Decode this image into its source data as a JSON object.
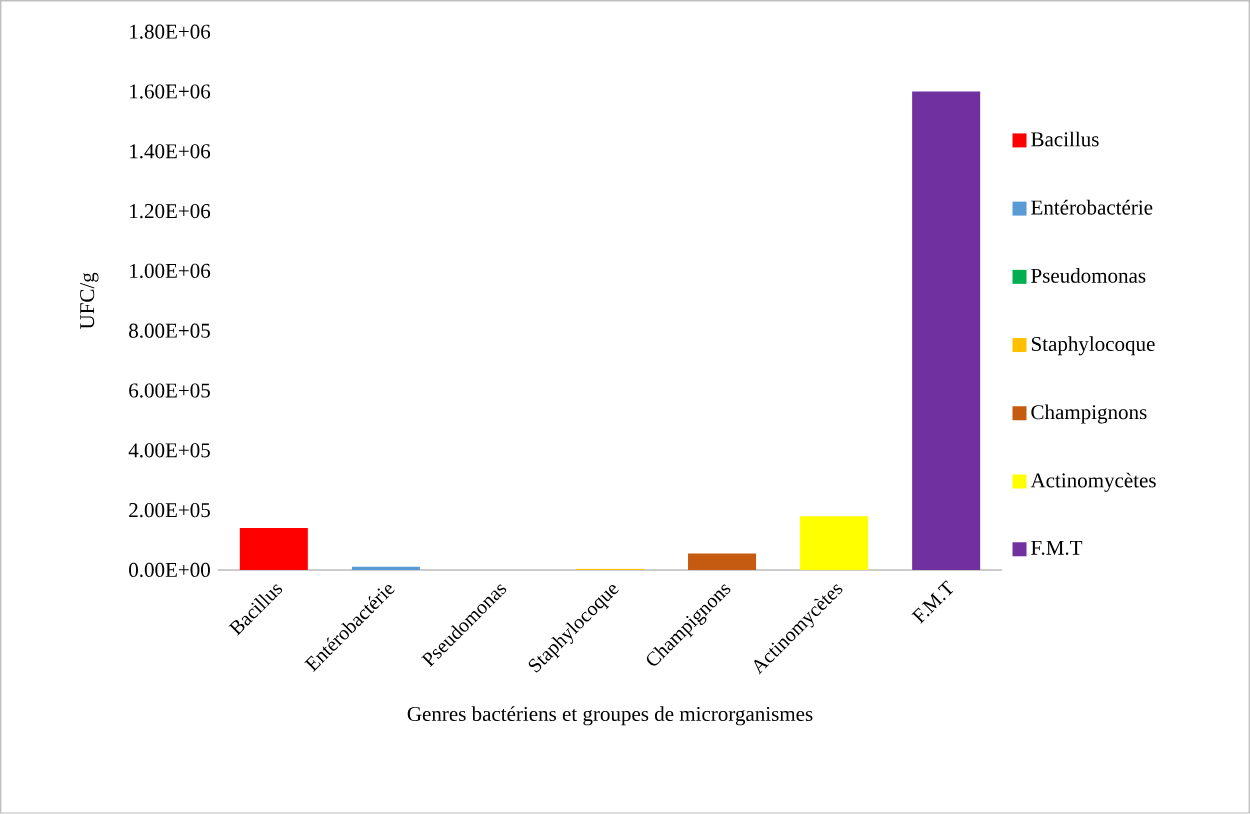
{
  "chart_data": {
    "type": "bar",
    "xlabel": "Genres bactériens et groupes de microrganismes",
    "ylabel": "UFC/g",
    "categories": [
      "Bacillus",
      "Entérobactérie",
      "Pseudomonas",
      "Staphylocoque",
      "Champignons",
      "Actinomycètes",
      "F.M.T"
    ],
    "series": [
      {
        "name": "Bacillus",
        "color": "#ff0000",
        "values": [
          140000,
          null,
          null,
          null,
          null,
          null,
          null
        ]
      },
      {
        "name": "Entérobactérie",
        "color": "#5b9bd5",
        "values": [
          null,
          12000,
          null,
          null,
          null,
          null,
          null
        ]
      },
      {
        "name": "Pseudomonas",
        "color": "#00b050",
        "values": [
          null,
          null,
          0,
          null,
          null,
          null,
          null
        ]
      },
      {
        "name": "Staphylocoque",
        "color": "#ffc000",
        "values": [
          null,
          null,
          null,
          4000,
          null,
          null,
          null
        ]
      },
      {
        "name": "Champignons",
        "color": "#c55a11",
        "values": [
          null,
          null,
          null,
          null,
          55000,
          null,
          null
        ]
      },
      {
        "name": "Actinomycètes",
        "color": "#ffff00",
        "values": [
          null,
          null,
          null,
          null,
          null,
          180000,
          null
        ]
      },
      {
        "name": "F.M.T",
        "color": "#7030a0",
        "values": [
          null,
          null,
          null,
          null,
          null,
          null,
          1600000
        ]
      }
    ],
    "ylim": [
      0,
      1800000
    ],
    "yticks": [
      {
        "value": 0,
        "label": "0.00E+00"
      },
      {
        "value": 200000,
        "label": "2.00E+05"
      },
      {
        "value": 400000,
        "label": "4.00E+05"
      },
      {
        "value": 600000,
        "label": "6.00E+05"
      },
      {
        "value": 800000,
        "label": "8.00E+05"
      },
      {
        "value": 1000000,
        "label": "1.00E+06"
      },
      {
        "value": 1200000,
        "label": "1.20E+06"
      },
      {
        "value": 1400000,
        "label": "1.40E+06"
      },
      {
        "value": 1600000,
        "label": "1.60E+06"
      },
      {
        "value": 1800000,
        "label": "1.80E+06"
      }
    ],
    "grid": false,
    "legend": "right"
  }
}
